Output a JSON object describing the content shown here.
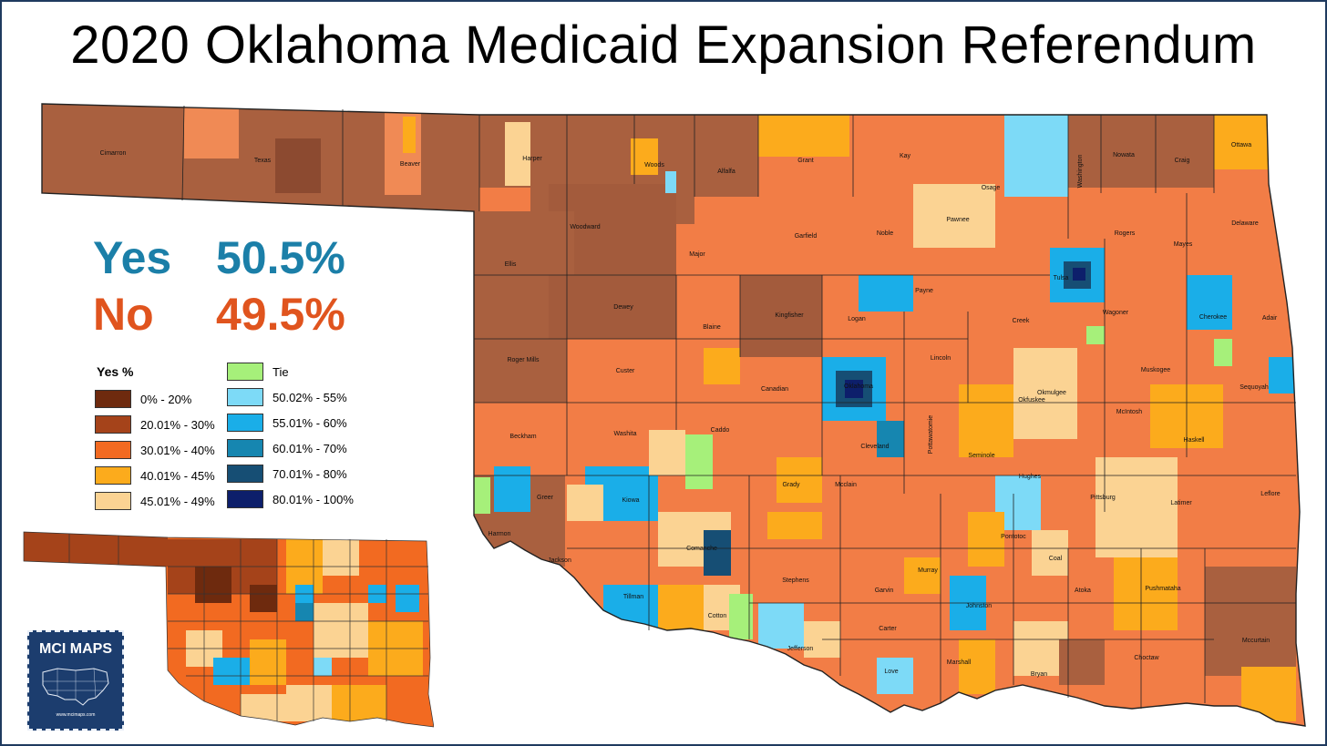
{
  "title": "2020 Oklahoma Medicaid Expansion Referendum",
  "results": {
    "yes": {
      "label": "Yes",
      "value": "50.5%",
      "color": "#1b7fa8"
    },
    "no": {
      "label": "No",
      "value": "49.5%",
      "color": "#e0541e"
    }
  },
  "legend": {
    "title": "Yes  %",
    "no_side": [
      {
        "label": "0% - 20%",
        "color": "#6e2a0e"
      },
      {
        "label": "20.01% - 30%",
        "color": "#a5431a"
      },
      {
        "label": "30.01% - 40%",
        "color": "#f26a21"
      },
      {
        "label": "40.01% - 45%",
        "color": "#fcab1c"
      },
      {
        "label": "45.01% - 49%",
        "color": "#fbd393"
      }
    ],
    "yes_side": [
      {
        "label": "Tie",
        "color": "#a6f07a"
      },
      {
        "label": "50.02% - 55%",
        "color": "#7ddaf7"
      },
      {
        "label": "55.01% - 60%",
        "color": "#1aaee8"
      },
      {
        "label": "60.01% - 70%",
        "color": "#1686b0"
      },
      {
        "label": "70.01% - 80%",
        "color": "#164e74"
      },
      {
        "label": "80.01% - 100%",
        "color": "#0d1f6b"
      }
    ]
  },
  "county_labels": [
    "Cimarron",
    "Texas",
    "Beaver",
    "Harper",
    "Woods",
    "Alfalfa",
    "Grant",
    "Kay",
    "Osage",
    "Washington",
    "Nowata",
    "Craig",
    "Ottawa",
    "Woodward",
    "Major",
    "Garfield",
    "Noble",
    "Pawnee",
    "Rogers",
    "Mayes",
    "Delaware",
    "Ellis",
    "Tulsa",
    "Dewey",
    "Blaine",
    "Kingfisher",
    "Logan",
    "Payne",
    "Creek",
    "Wagoner",
    "Cherokee",
    "Adair",
    "Roger Mills",
    "Custer",
    "Canadian",
    "Oklahoma",
    "Lincoln",
    "Okmulgee",
    "Muskogee",
    "Sequoyah",
    "Okfuskee",
    "McIntosh",
    "Beckham",
    "Washita",
    "Caddo",
    "Cleveland",
    "Pottawatomie",
    "Seminole",
    "Hughes",
    "Haskell",
    "Grady",
    "Mcclain",
    "Greer",
    "Kiowa",
    "Pittsburg",
    "Latimer",
    "Leflore",
    "Harmon",
    "Jackson",
    "Comanche",
    "Garvin",
    "Pontotoc",
    "Coal",
    "Murray",
    "Tillman",
    "Stephens",
    "Atoka",
    "Pushmataha",
    "Cotton",
    "Johnston",
    "Jefferson",
    "Carter",
    "Marshall",
    "Mccurtain",
    "Love",
    "Bryan",
    "Choctaw"
  ],
  "brand": {
    "name": "MCI MAPS",
    "url": "www.mcimaps.com"
  }
}
